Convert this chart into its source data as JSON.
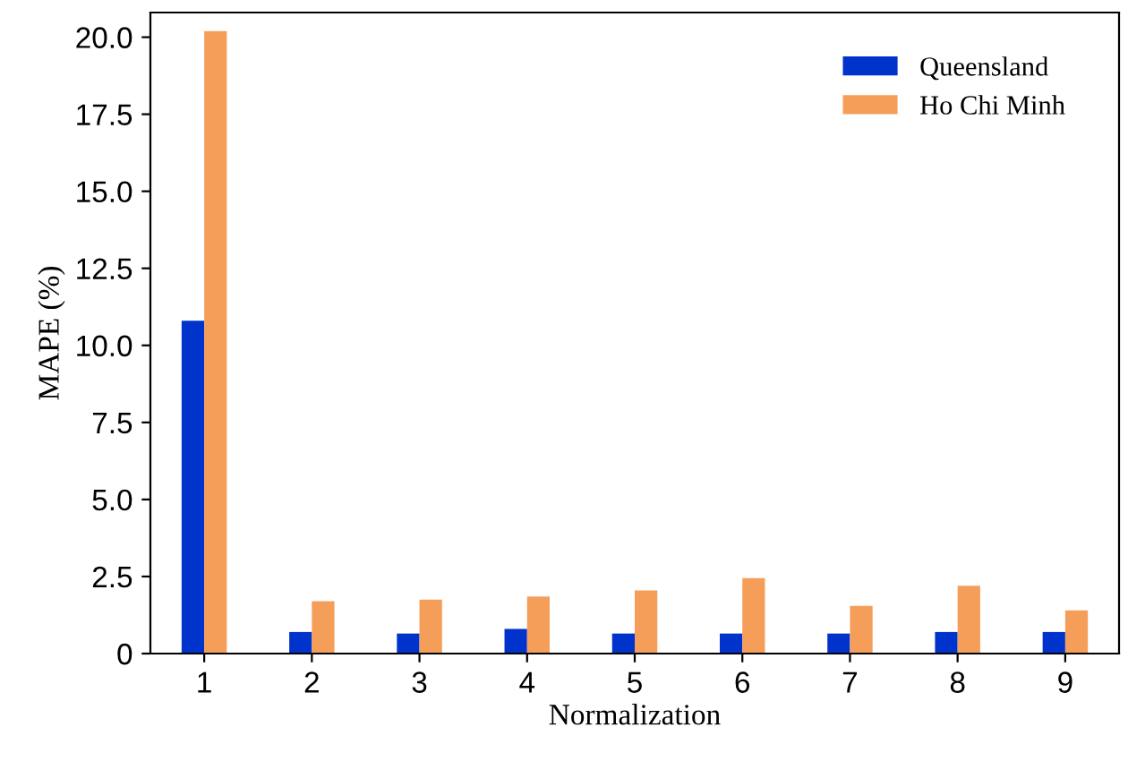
{
  "chart_data": {
    "type": "bar",
    "xlabel": "Normalization",
    "ylabel": "MAPE (%)",
    "categories": [
      "1",
      "2",
      "3",
      "4",
      "5",
      "6",
      "7",
      "8",
      "9"
    ],
    "series": [
      {
        "name": "Queensland",
        "color": "#0033cc",
        "values": [
          10.8,
          0.7,
          0.65,
          0.8,
          0.65,
          0.65,
          0.65,
          0.7,
          0.7
        ]
      },
      {
        "name": "Ho Chi Minh",
        "color": "#f59e5a",
        "values": [
          20.2,
          1.7,
          1.75,
          1.85,
          2.05,
          2.45,
          1.55,
          2.2,
          1.4
        ]
      }
    ],
    "ylim": [
      0,
      20.8
    ],
    "yticks": [
      {
        "value": 0,
        "label": "0"
      },
      {
        "value": 2.5,
        "label": "2.5"
      },
      {
        "value": 5,
        "label": "5.0"
      },
      {
        "value": 7.5,
        "label": "7.5"
      },
      {
        "value": 10,
        "label": "10.0"
      },
      {
        "value": 12.5,
        "label": "12.5"
      },
      {
        "value": 15,
        "label": "15.0"
      },
      {
        "value": 17.5,
        "label": "17.5"
      },
      {
        "value": 20,
        "label": "20.0"
      }
    ],
    "grid": false,
    "legend": "top right"
  }
}
